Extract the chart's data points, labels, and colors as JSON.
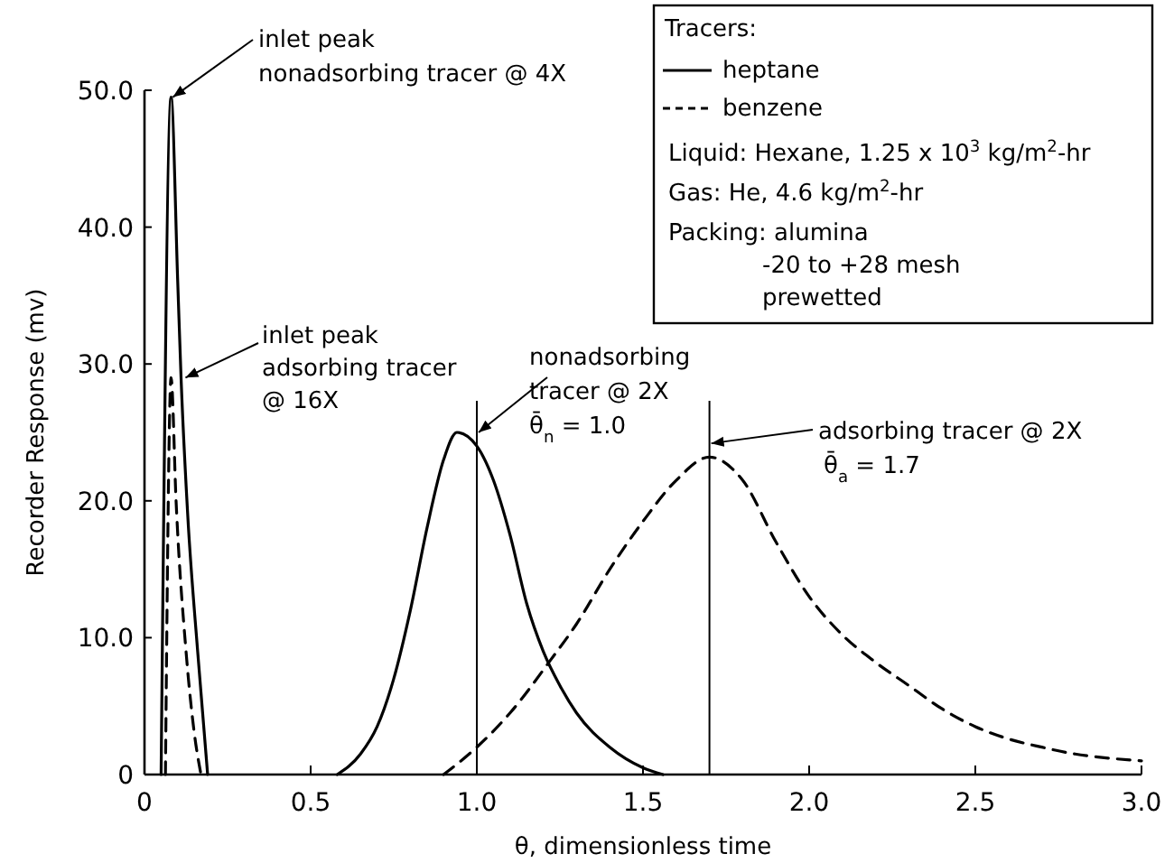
{
  "chart_data": {
    "type": "line",
    "xlabel": "θ, dimensionless time",
    "ylabel": "Recorder Response (mv)",
    "legend_title": "Tracers:",
    "legend": "top right",
    "xlim": [
      0,
      3.0
    ],
    "ylim": [
      0,
      50
    ],
    "xticks": [
      0,
      {
        "value": 0.5,
        "label": "0.5"
      },
      {
        "value": 1,
        "label": "1.0"
      },
      {
        "value": 1.5,
        "label": "1.5"
      },
      {
        "value": 2,
        "label": "2.0"
      },
      {
        "value": 2.5,
        "label": "2.5"
      },
      {
        "value": 3,
        "label": "3.0"
      }
    ],
    "yticks": [
      0,
      {
        "value": 10,
        "label": "10.0"
      },
      {
        "value": 20,
        "label": "20.0"
      },
      {
        "value": 30,
        "label": "30.0"
      },
      {
        "value": 40,
        "label": "40.0"
      },
      {
        "value": 50,
        "label": "50.0"
      }
    ],
    "grid": false,
    "marker": "none",
    "series": [
      {
        "name": "heptane",
        "color": "#000000",
        "line_style": "solid",
        "x": [
          0.05,
          0.08,
          0.1,
          0.11,
          0.13,
          0.16,
          0.18,
          0.19,
          0.4,
          0.58,
          0.65,
          0.7,
          0.75,
          0.8,
          0.85,
          0.9,
          0.94,
          1.0,
          1.05,
          1.1,
          1.15,
          1.2,
          1.25,
          1.3,
          1.4,
          1.5,
          1.56
        ],
        "values": [
          0,
          49.5,
          36,
          29,
          19,
          9,
          3,
          0,
          null,
          0,
          1.5,
          3.5,
          7,
          12,
          18,
          23,
          25,
          24,
          21.5,
          17.5,
          12.5,
          9,
          6.5,
          4.5,
          2,
          0.5,
          0
        ]
      },
      {
        "name": "benzene",
        "color": "#000000",
        "line_style": "dashed",
        "x": [
          0.063,
          0.08,
          0.095,
          0.125,
          0.15,
          0.17,
          0.5,
          0.9,
          1.0,
          1.1,
          1.22,
          1.3,
          1.4,
          1.5,
          1.6,
          1.7,
          1.8,
          1.9,
          2.0,
          2.1,
          2.2,
          2.3,
          2.4,
          2.5,
          2.6,
          2.7,
          2.8,
          2.9,
          3.0
        ],
        "values": [
          0,
          29,
          20,
          9,
          3,
          0,
          null,
          0,
          2,
          4.5,
          8.3,
          11,
          15,
          18.5,
          21.5,
          23.2,
          21.5,
          17,
          13,
          10.2,
          8.2,
          6.5,
          4.8,
          3.5,
          2.6,
          2,
          1.5,
          1.2,
          1.0
        ]
      }
    ],
    "ref_lines": [
      {
        "axis": "x",
        "value": 1.0
      },
      {
        "axis": "x",
        "value": 1.7
      }
    ],
    "annotations": [
      {
        "text": "inlet peak\nnonadsorbing tracer @ 4X",
        "x": 0.08,
        "y": 49.5
      },
      {
        "text": "inlet peak\nadsorbing tracer\n@ 16X",
        "x": 0.118,
        "y": 29
      },
      {
        "text": "nonadsorbing\ntracer @ 2X\nθ̄$_{n}$ = 1.0",
        "x": 1.0,
        "y": 25
      },
      {
        "text": "adsorbing tracer @ 2X\nθ̄$_{a}$ = 1.7",
        "x": 1.7,
        "y": 24.2
      },
      "Liquid: Hexane, 1.25 x 10$^{3}$ kg/m$^{2}$-hr",
      "Gas: He, 4.6 kg/m$^{2}$-hr",
      "Packing: alumina\n-20 to +28 mesh\nprewetted"
    ]
  }
}
